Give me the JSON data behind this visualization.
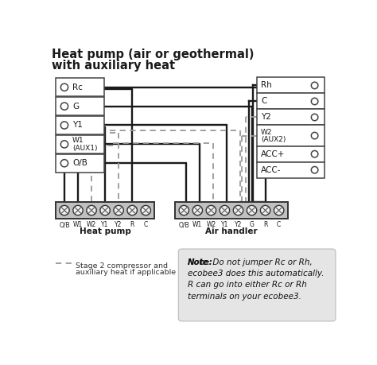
{
  "title_line1": "Heat pump (air or geothermal)",
  "title_line2": "with auxiliary heat",
  "bg_color": "#ffffff",
  "line_color": "#1a1a1a",
  "dash_color": "#999999",
  "note_bg": "#e5e5e5",
  "note_text_bold": "Note:",
  "note_text_rest": " Do not jumper Rc or Rh,\necobee3 does this automatically.\nR can go into either Rc or Rh\nterminals on your ecobee3.",
  "legend_text_line1": "Stage 2 compressor and",
  "legend_text_line2": "auxiliary heat if applicable",
  "thermostat_labels": [
    "Rh",
    "C",
    "Y2",
    "W2\n(AUX2)",
    "ACC+",
    "ACC-"
  ],
  "heat_pump_labels": [
    "O/B",
    "W1",
    "W2",
    "Y1",
    "Y2",
    "R",
    "C"
  ],
  "air_handler_labels": [
    "O/B",
    "W1",
    "W2",
    "Y1",
    "Y2",
    "G",
    "R",
    "C"
  ],
  "left_terminal_labels": [
    "Rc",
    "G",
    "Y1",
    "W1\n(AUX1)",
    "O/B"
  ]
}
